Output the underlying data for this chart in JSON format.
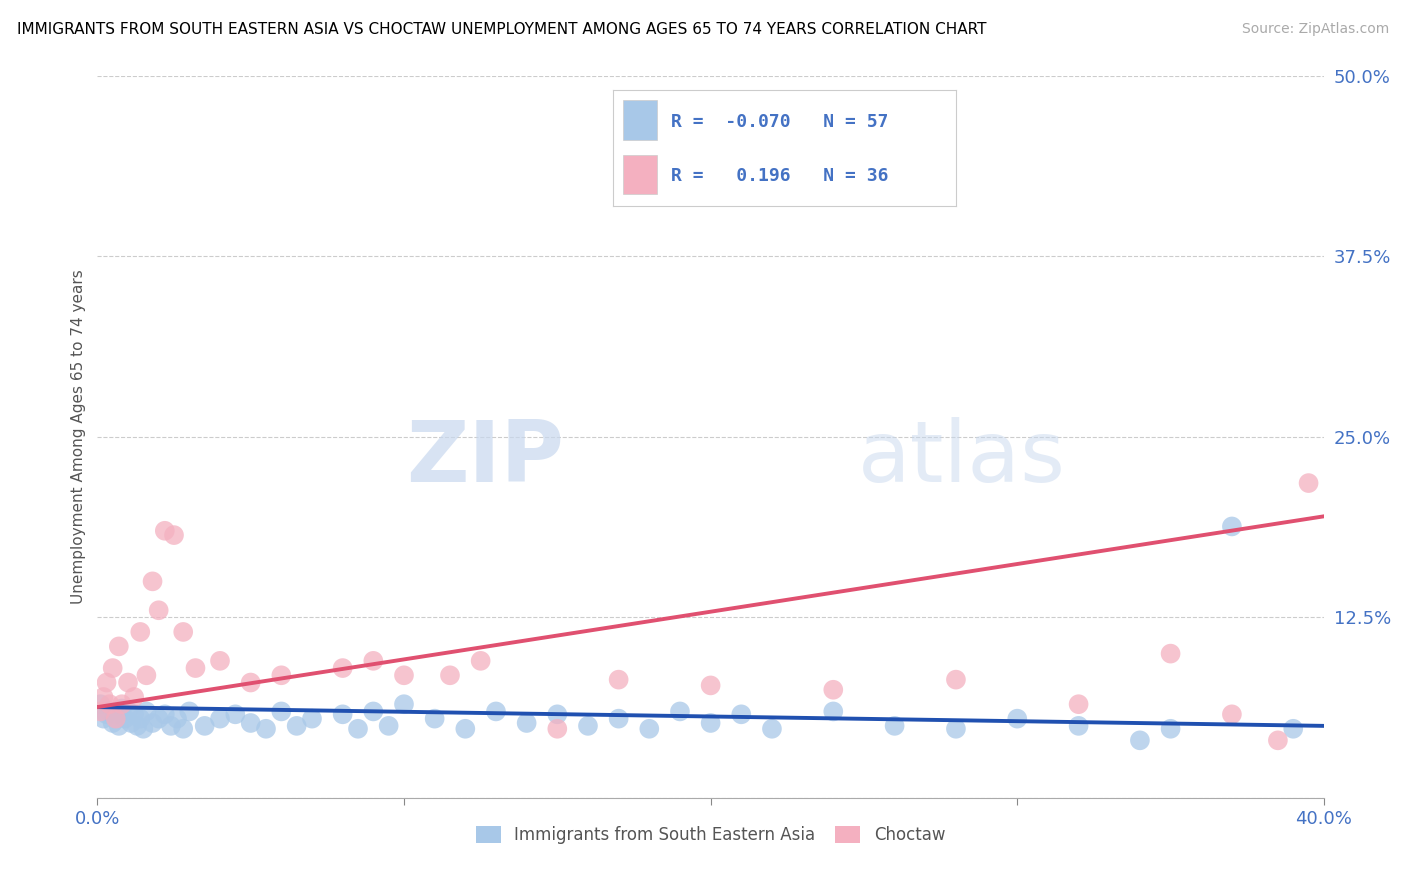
{
  "title": "IMMIGRANTS FROM SOUTH EASTERN ASIA VS CHOCTAW UNEMPLOYMENT AMONG AGES 65 TO 74 YEARS CORRELATION CHART",
  "source": "Source: ZipAtlas.com",
  "ylabel": "Unemployment Among Ages 65 to 74 years",
  "xlim": [
    0.0,
    0.4
  ],
  "ylim": [
    0.0,
    0.5
  ],
  "xticks": [
    0.0,
    0.1,
    0.2,
    0.3,
    0.4
  ],
  "xticklabels": [
    "0.0%",
    "",
    "",
    "",
    "40.0%"
  ],
  "yticks": [
    0.0,
    0.125,
    0.25,
    0.375,
    0.5
  ],
  "yticklabels": [
    "",
    "12.5%",
    "25.0%",
    "37.5%",
    "50.0%"
  ],
  "blue_R": -0.07,
  "blue_N": 57,
  "pink_R": 0.196,
  "pink_N": 36,
  "blue_color": "#a8c8e8",
  "pink_color": "#f4b0c0",
  "blue_line_color": "#2050b0",
  "pink_line_color": "#e05070",
  "legend_label_blue": "Immigrants from South Eastern Asia",
  "legend_label_pink": "Choctaw",
  "watermark_zip": "ZIP",
  "watermark_atlas": "atlas",
  "blue_x": [
    0.001,
    0.002,
    0.003,
    0.004,
    0.005,
    0.006,
    0.007,
    0.008,
    0.009,
    0.01,
    0.011,
    0.012,
    0.013,
    0.014,
    0.015,
    0.016,
    0.018,
    0.02,
    0.022,
    0.024,
    0.026,
    0.028,
    0.03,
    0.035,
    0.04,
    0.045,
    0.05,
    0.055,
    0.06,
    0.065,
    0.07,
    0.08,
    0.085,
    0.09,
    0.095,
    0.1,
    0.11,
    0.12,
    0.13,
    0.14,
    0.15,
    0.16,
    0.17,
    0.18,
    0.19,
    0.2,
    0.21,
    0.22,
    0.24,
    0.26,
    0.28,
    0.3,
    0.32,
    0.34,
    0.35,
    0.37,
    0.39
  ],
  "blue_y": [
    0.065,
    0.055,
    0.058,
    0.06,
    0.052,
    0.058,
    0.05,
    0.062,
    0.055,
    0.06,
    0.052,
    0.058,
    0.05,
    0.055,
    0.048,
    0.06,
    0.052,
    0.055,
    0.058,
    0.05,
    0.055,
    0.048,
    0.06,
    0.05,
    0.055,
    0.058,
    0.052,
    0.048,
    0.06,
    0.05,
    0.055,
    0.058,
    0.048,
    0.06,
    0.05,
    0.065,
    0.055,
    0.048,
    0.06,
    0.052,
    0.058,
    0.05,
    0.055,
    0.048,
    0.06,
    0.052,
    0.058,
    0.048,
    0.06,
    0.05,
    0.048,
    0.055,
    0.05,
    0.04,
    0.048,
    0.188,
    0.048
  ],
  "pink_x": [
    0.001,
    0.002,
    0.003,
    0.004,
    0.005,
    0.006,
    0.007,
    0.008,
    0.01,
    0.012,
    0.014,
    0.016,
    0.018,
    0.02,
    0.022,
    0.025,
    0.028,
    0.032,
    0.04,
    0.05,
    0.06,
    0.08,
    0.09,
    0.1,
    0.115,
    0.125,
    0.15,
    0.17,
    0.2,
    0.24,
    0.28,
    0.32,
    0.35,
    0.37,
    0.385,
    0.395
  ],
  "pink_y": [
    0.06,
    0.07,
    0.08,
    0.065,
    0.09,
    0.055,
    0.105,
    0.065,
    0.08,
    0.07,
    0.115,
    0.085,
    0.15,
    0.13,
    0.185,
    0.182,
    0.115,
    0.09,
    0.095,
    0.08,
    0.085,
    0.09,
    0.095,
    0.085,
    0.085,
    0.095,
    0.048,
    0.082,
    0.078,
    0.075,
    0.082,
    0.065,
    0.1,
    0.058,
    0.04,
    0.218
  ],
  "blue_trend_x": [
    0.0,
    0.4
  ],
  "blue_trend_y": [
    0.063,
    0.05
  ],
  "pink_trend_x": [
    0.0,
    0.4
  ],
  "pink_trend_y": [
    0.063,
    0.195
  ]
}
